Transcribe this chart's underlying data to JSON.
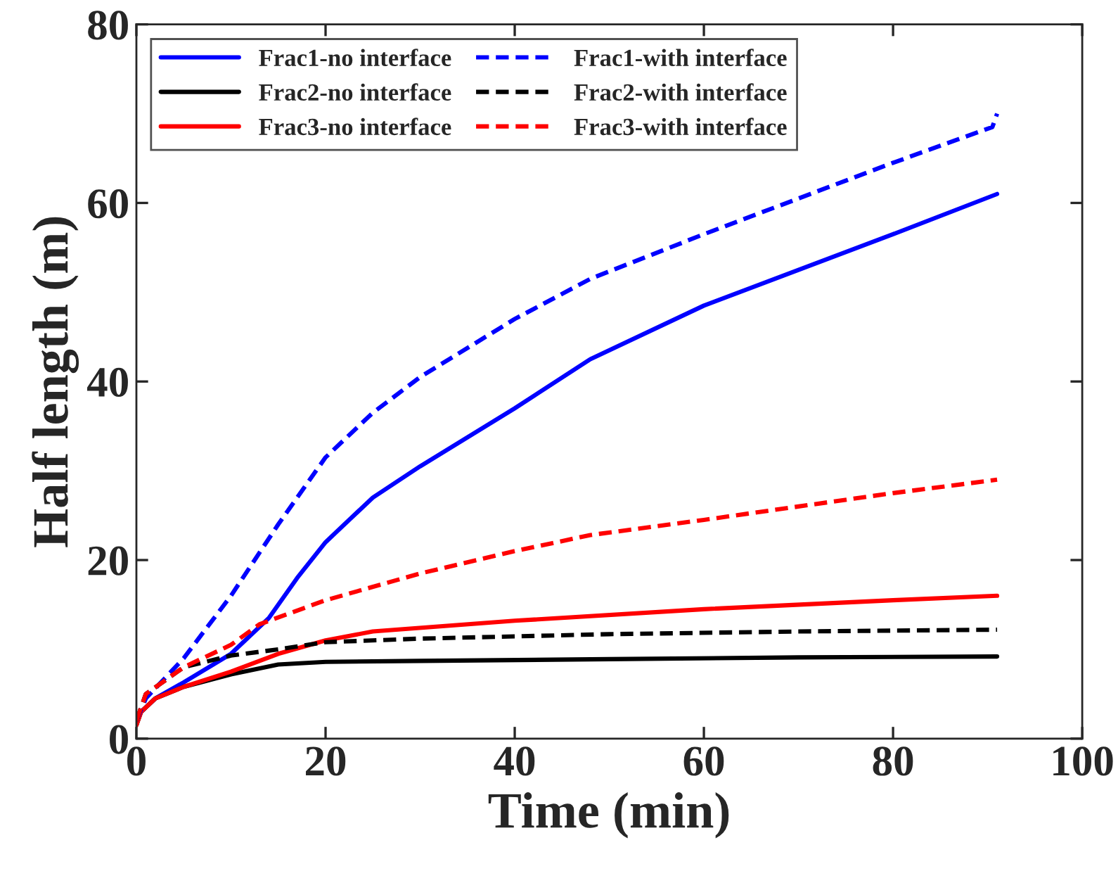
{
  "chart_data": {
    "type": "line",
    "xlabel": "Time (min)",
    "ylabel": "Half length (m)",
    "xlim": [
      0,
      100
    ],
    "xticks": [
      0,
      20,
      40,
      60,
      80,
      100
    ],
    "ylim": [
      0,
      80
    ],
    "yticks": [
      0,
      20,
      40,
      60,
      80
    ],
    "grid": false,
    "legend": "top left",
    "marker": "none",
    "series": [
      {
        "name": "Frac1-no interface",
        "color": "#0000ff",
        "line_style": "solid",
        "x": [
          0.5,
          2,
          5,
          10,
          14,
          17,
          20,
          25,
          30,
          40,
          48,
          60,
          70,
          80,
          91
        ],
        "values": [
          3,
          4.5,
          6.3,
          9.5,
          13.5,
          18,
          22,
          27,
          30.5,
          37,
          42.5,
          48.5,
          52.5,
          56.5,
          61
        ]
      },
      {
        "name": "Frac2-no interface",
        "color": "#000000",
        "line_style": "solid",
        "x": [
          0,
          0.5,
          2,
          5,
          10,
          15,
          20,
          30,
          50,
          70,
          91
        ],
        "values": [
          1.5,
          3,
          4.5,
          5.8,
          7.2,
          8.3,
          8.6,
          8.7,
          8.9,
          9.1,
          9.2
        ]
      },
      {
        "name": "Frac3-no interface",
        "color": "#ff0000",
        "line_style": "solid",
        "x": [
          0,
          0.5,
          2,
          5,
          10,
          15,
          20,
          25,
          40,
          60,
          80,
          91
        ],
        "values": [
          1.5,
          3,
          4.5,
          5.8,
          7.5,
          9.5,
          11,
          12,
          13.2,
          14.5,
          15.5,
          16
        ]
      },
      {
        "name": "Frac1-with interface",
        "color": "#0000ff",
        "line_style": "dashed",
        "x": [
          0,
          1,
          5,
          10,
          15,
          20,
          25,
          30,
          40,
          48,
          60,
          70,
          80,
          90.5,
          91
        ],
        "values": [
          2,
          4.5,
          9,
          16,
          24,
          31.5,
          36.5,
          40.5,
          47,
          51.5,
          56.5,
          60.5,
          64.5,
          68.5,
          70
        ]
      },
      {
        "name": "Frac2-with interface",
        "color": "#000000",
        "line_style": "dashed",
        "x": [
          0,
          1,
          5,
          10,
          15,
          20,
          30,
          50,
          70,
          91
        ],
        "values": [
          2,
          5,
          8,
          9.3,
          10,
          10.8,
          11.2,
          11.7,
          12,
          12.2
        ]
      },
      {
        "name": "Frac3-with interface",
        "color": "#ff0000",
        "line_style": "dashed",
        "x": [
          0,
          1,
          5,
          10,
          13,
          20,
          30,
          40,
          48,
          60,
          80,
          91
        ],
        "values": [
          2,
          5,
          8,
          10.5,
          12.8,
          15.5,
          18.5,
          21,
          22.8,
          24.5,
          27.5,
          29
        ]
      }
    ]
  }
}
